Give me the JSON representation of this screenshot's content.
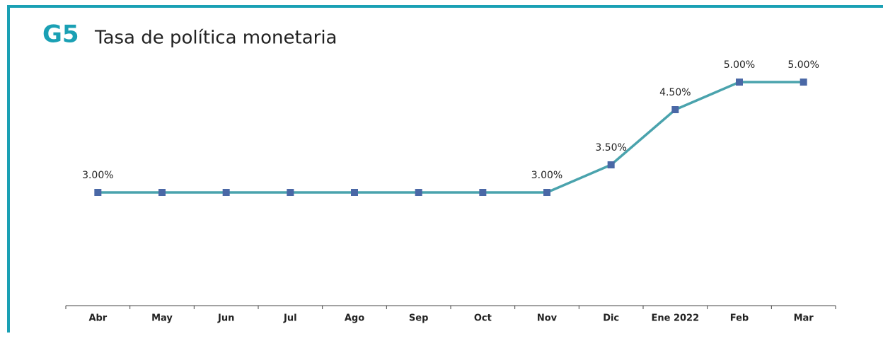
{
  "chart_data": {
    "type": "line",
    "code": "G5",
    "title": "Tasa de política monetaria",
    "categories": [
      "Abr",
      "May",
      "Jun",
      "Jul",
      "Ago",
      "Sep",
      "Oct",
      "Nov",
      "Dic",
      "Ene 2022",
      "Feb",
      "Mar"
    ],
    "series": [
      {
        "name": "Tasa de política monetaria",
        "color": "#4aa3ad",
        "marker_color": "#4a68a6",
        "values": [
          3.0,
          3.0,
          3.0,
          3.0,
          3.0,
          3.0,
          3.0,
          3.0,
          3.5,
          4.5,
          5.0,
          5.0
        ],
        "value_labels": [
          "3.00%",
          null,
          null,
          null,
          null,
          null,
          null,
          "3.00%",
          "3.50%",
          "4.50%",
          "5.00%",
          "5.00%"
        ]
      }
    ],
    "ylim": [
      1,
      5.5
    ]
  }
}
